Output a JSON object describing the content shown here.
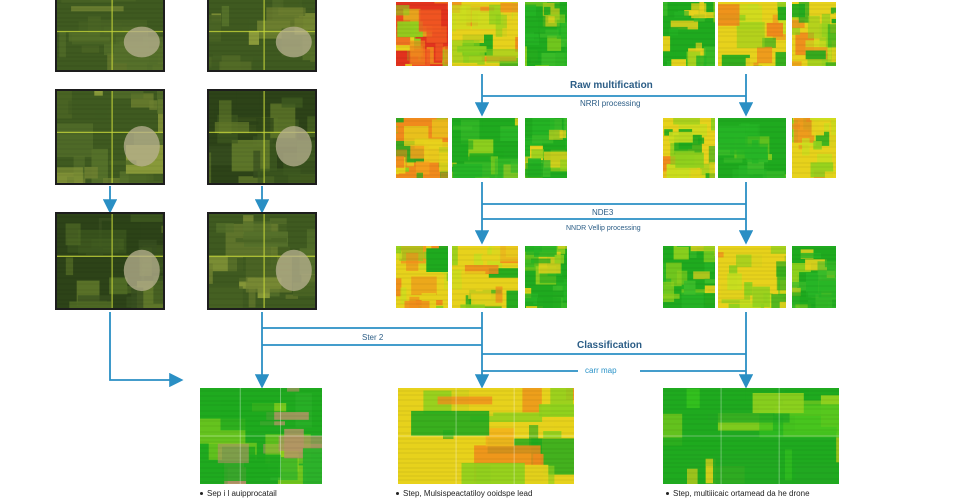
{
  "labels": {
    "raw_multification": "Raw multification",
    "nrri_processing": "NRRI processing",
    "nde3": "NDE3",
    "nndr_vellip_processing": "NNDR Vellip processing",
    "step_2": "Ster 2",
    "classification": "Classification",
    "carr_map": "carr map"
  },
  "captions": {
    "left": "Sep i l auipprocatail",
    "center": "Step, Mulsispeactatiloy ooidspe lead",
    "right": "Step, multiiicaic ortamead da he drone"
  },
  "colors": {
    "arrow": "#2a8fc4",
    "label": "#2b5d86",
    "veg_high": "#1faa1f",
    "veg_mid": "#8fd11e",
    "veg_low": "#e7d21c",
    "stress": "#f08a1c",
    "bare": "#b49467",
    "photo_dark": "#3f5a20",
    "photo_light": "#8a9a3a"
  }
}
